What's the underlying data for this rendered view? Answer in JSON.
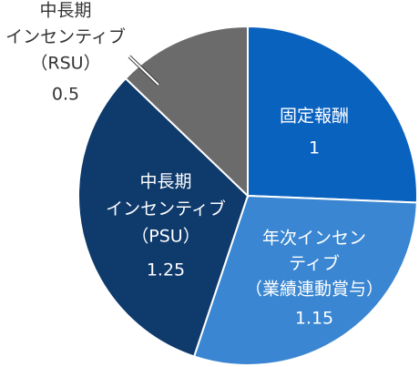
{
  "chart_data": {
    "type": "pie",
    "categories": [
      [
        "固定報酬"
      ],
      [
        "年次インセン",
        "ティブ",
        "（業績連動賞与）"
      ],
      [
        "中長期",
        "インセンティブ",
        "（PSU）"
      ],
      [
        "中長期",
        "インセンティブ",
        "（RSU）"
      ]
    ],
    "values": [
      1,
      1.15,
      1.25,
      0.5
    ],
    "colors": [
      "#0a62bf",
      "#3a86d2",
      "#0f3a6c",
      "#6b6b6b"
    ]
  }
}
